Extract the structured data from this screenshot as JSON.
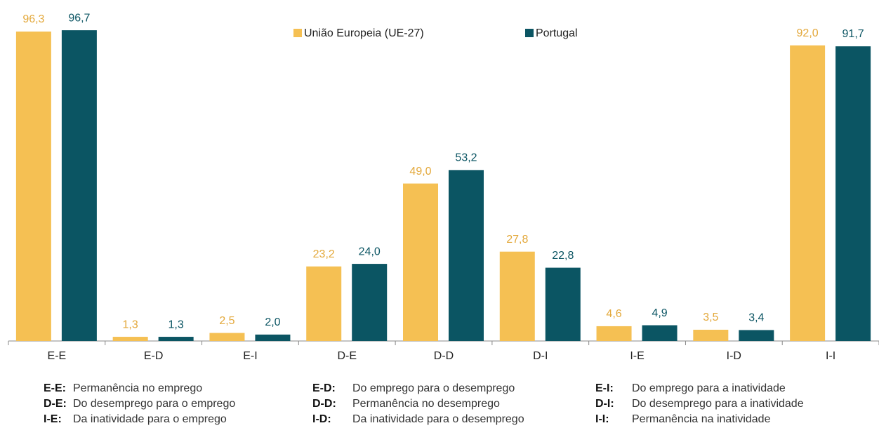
{
  "chart_data": {
    "type": "bar",
    "categories": [
      "E-E",
      "E-D",
      "E-I",
      "D-E",
      "D-D",
      "D-I",
      "I-E",
      "I-D",
      "I-I"
    ],
    "series": [
      {
        "name": "União Europeia  (UE-27)",
        "color": "#f5c053",
        "label_color": "#e3a83a",
        "values": [
          96.3,
          1.3,
          2.5,
          23.2,
          49.0,
          27.8,
          4.6,
          3.5,
          92.0
        ],
        "value_labels": [
          "96,3",
          "1,3",
          "2,5",
          "23,2",
          "49,0",
          "27,8",
          "4,6",
          "3,5",
          "92,0"
        ]
      },
      {
        "name": "Portugal",
        "color": "#0b5563",
        "label_color": "#0b5563",
        "values": [
          96.7,
          1.3,
          2.0,
          24.0,
          53.2,
          22.8,
          4.9,
          3.4,
          91.7
        ],
        "value_labels": [
          "96,7",
          "1,3",
          "2,0",
          "24,0",
          "53,2",
          "22,8",
          "4,9",
          "3,4",
          "91,7"
        ]
      }
    ],
    "ylim": [
      0,
      100
    ]
  },
  "notes": [
    {
      "code": "E-E:",
      "text": "Permanência no emprego"
    },
    {
      "code": "E-D:",
      "text": "Do emprego para o desemprego"
    },
    {
      "code": "E-I:",
      "text": "Do emprego para a inatividade"
    },
    {
      "code": "D-E:",
      "text": "Do desemprego para o emprego"
    },
    {
      "code": "D-D:",
      "text": "Permanência no desemprego"
    },
    {
      "code": "D-I:",
      "text": "Do desemprego para a inatividade"
    },
    {
      "code": "I-E:",
      "text": "Da inatividade para o emprego"
    },
    {
      "code": "I-D:",
      "text": "Da inatividade para o desemprego"
    },
    {
      "code": "I-I:",
      "text": "Permanência na inatividade"
    }
  ]
}
